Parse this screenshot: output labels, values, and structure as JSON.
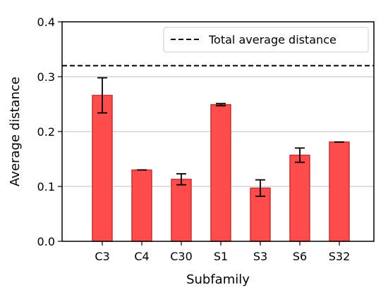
{
  "chart_data": {
    "type": "bar",
    "categories": [
      "C3",
      "C4",
      "C30",
      "S1",
      "S3",
      "S6",
      "S32"
    ],
    "values": [
      0.266,
      0.13,
      0.113,
      0.249,
      0.097,
      0.157,
      0.181
    ],
    "errors": [
      0.032,
      0.0,
      0.01,
      0.002,
      0.015,
      0.013,
      0.0
    ],
    "xlabel": "Subfamily",
    "ylabel": "Average distance",
    "ylim": [
      0,
      0.4
    ],
    "yticks": [
      "0.0",
      "0.1",
      "0.2",
      "0.3",
      "0.4"
    ],
    "grid": "horizontal",
    "reference_line": {
      "name": "Total average distance",
      "value": 0.32,
      "style": "dashed"
    },
    "legend": {
      "label": "Total average distance",
      "position": "top-right"
    },
    "colors": {
      "bar_fill": "#ff4d4d",
      "bar_edge": "#c83232",
      "grid": "#cccccc",
      "reference": "#000000"
    }
  }
}
